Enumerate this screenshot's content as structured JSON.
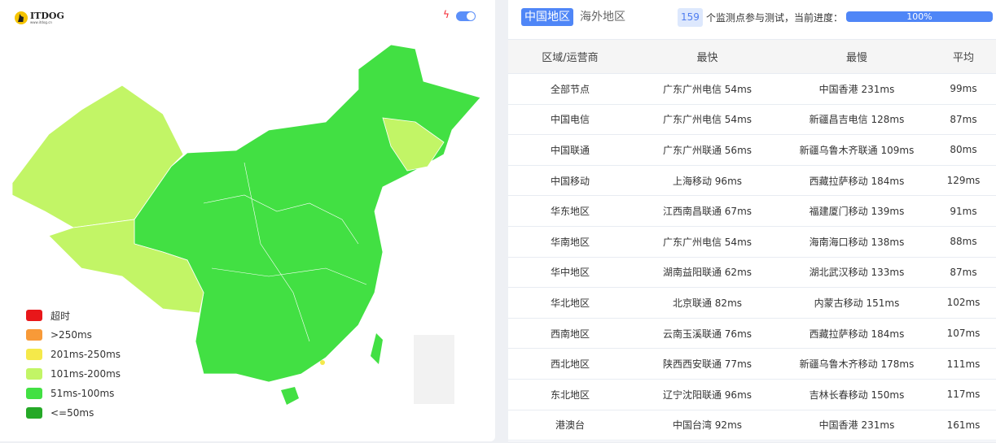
{
  "logo": {
    "name": "ITDOG",
    "url": "www.itdog.cn"
  },
  "toggle": {
    "on": true,
    "icon": "lightning-icon"
  },
  "colors": {
    "timeout": "#e8171a",
    "over250": "#f89a38",
    "r201_250": "#f5e94a",
    "r101_200": "#c2f566",
    "r51_100": "#42e043",
    "le50": "#25a927",
    "accent": "#4f86f7"
  },
  "legend": [
    {
      "label": "超时",
      "color": "#e8171a"
    },
    {
      "label": ">250ms",
      "color": "#f89a38"
    },
    {
      "label": "201ms-250ms",
      "color": "#f5e94a"
    },
    {
      "label": "101ms-200ms",
      "color": "#c2f566"
    },
    {
      "label": "51ms-100ms",
      "color": "#42e043"
    },
    {
      "label": "<=50ms",
      "color": "#25a927"
    }
  ],
  "tabs": [
    {
      "label": "中国地区",
      "active": true
    },
    {
      "label": "海外地区",
      "active": false
    }
  ],
  "status": {
    "count": "159",
    "text": "个监测点参与测试，当前进度：",
    "progress": "100%",
    "progress_value": 100
  },
  "table": {
    "headers": [
      "区域/运营商",
      "最快",
      "最慢",
      "平均"
    ],
    "rows": [
      [
        "全部节点",
        "广东广州电信 54ms",
        "中国香港 231ms",
        "99ms"
      ],
      [
        "中国电信",
        "广东广州电信 54ms",
        "新疆昌吉电信 128ms",
        "87ms"
      ],
      [
        "中国联通",
        "广东广州联通 56ms",
        "新疆乌鲁木齐联通 109ms",
        "80ms"
      ],
      [
        "中国移动",
        "上海移动 96ms",
        "西藏拉萨移动 184ms",
        "129ms"
      ],
      [
        "华东地区",
        "江西南昌联通 67ms",
        "福建厦门移动 139ms",
        "91ms"
      ],
      [
        "华南地区",
        "广东广州电信 54ms",
        "海南海口移动 138ms",
        "88ms"
      ],
      [
        "华中地区",
        "湖南益阳联通 62ms",
        "湖北武汉移动 133ms",
        "87ms"
      ],
      [
        "华北地区",
        "北京联通 82ms",
        "内蒙古移动 151ms",
        "102ms"
      ],
      [
        "西南地区",
        "云南玉溪联通 76ms",
        "西藏拉萨移动 184ms",
        "107ms"
      ],
      [
        "西北地区",
        "陕西西安联通 77ms",
        "新疆乌鲁木齐移动 178ms",
        "111ms"
      ],
      [
        "东北地区",
        "辽宁沈阳联通 96ms",
        "吉林长春移动 150ms",
        "117ms"
      ],
      [
        "港澳台",
        "中国台湾 92ms",
        "中国香港 231ms",
        "161ms"
      ]
    ]
  }
}
